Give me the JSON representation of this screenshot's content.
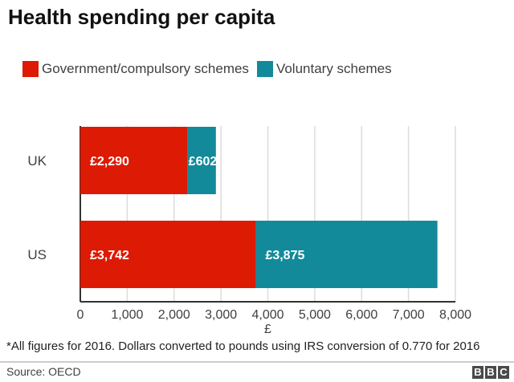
{
  "chart_data": {
    "type": "bar",
    "orientation": "horizontal",
    "stacked": true,
    "title": "Health spending per capita",
    "categories": [
      "UK",
      "US"
    ],
    "series": [
      {
        "name": "Government/compulsory schemes",
        "values": [
          2290,
          3742
        ],
        "labels": [
          "£2,290",
          "£3,742"
        ],
        "color": "#dd1a04"
      },
      {
        "name": "Voluntary schemes",
        "values": [
          602,
          3875
        ],
        "labels": [
          "£602",
          "£3,875"
        ],
        "color": "#138a9a"
      }
    ],
    "xlabel": "£",
    "xlim": [
      0,
      8000
    ],
    "xticks": [
      0,
      1000,
      2000,
      3000,
      4000,
      5000,
      6000,
      7000,
      8000
    ],
    "xtick_labels": [
      "0",
      "1,000",
      "2,000",
      "3,000",
      "4,000",
      "5,000",
      "6,000",
      "7,000",
      "8,000"
    ],
    "grid": true,
    "legend_position": "top-left"
  },
  "footnote": "*All figures for 2016. Dollars converted to pounds using IRS conversion of 0.770 for 2016",
  "source": "Source: OECD",
  "logo": [
    "B",
    "B",
    "C"
  ]
}
